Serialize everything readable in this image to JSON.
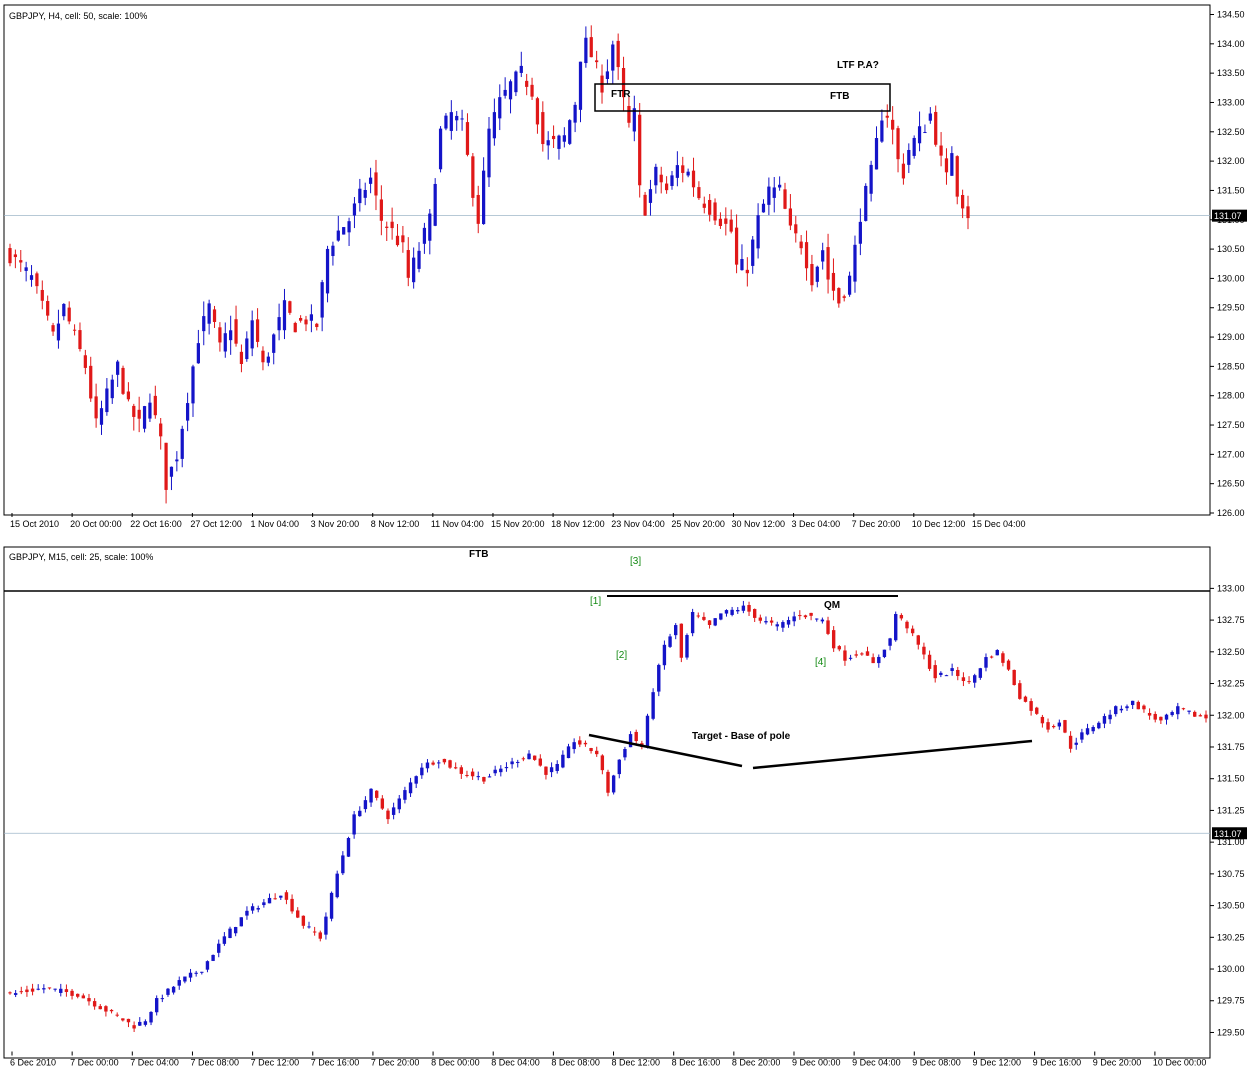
{
  "chart_data": [
    {
      "type": "candlestick",
      "info_text": "GBPJPY, H4, cell: 50, scale: 100%",
      "ylim": [
        126.0,
        134.5
      ],
      "y_ticks": [
        "134.50",
        "134.00",
        "133.50",
        "133.00",
        "132.50",
        "132.00",
        "131.50",
        "131.00",
        "130.50",
        "130.00",
        "129.50",
        "129.00",
        "128.50",
        "128.00",
        "127.50",
        "127.00",
        "126.50",
        "126.00"
      ],
      "x_ticks": [
        "15 Oct 2010",
        "20 Oct 00:00",
        "22 Oct 16:00",
        "27 Oct 12:00",
        "1 Nov 04:00",
        "3 Nov 20:00",
        "8 Nov 12:00",
        "11 Nov 04:00",
        "15 Nov 20:00",
        "18 Nov 12:00",
        "23 Nov 04:00",
        "25 Nov 20:00",
        "30 Nov 12:00",
        "3 Dec 04:00",
        "7 Dec 20:00",
        "10 Dec 12:00",
        "15 Dec 04:00"
      ],
      "last_price": "131.07",
      "close_path": [
        [
          0,
          130.4
        ],
        [
          4,
          130.0
        ],
        [
          8,
          129.0
        ],
        [
          10,
          129.5
        ],
        [
          14,
          128.5
        ],
        [
          16,
          127.5
        ],
        [
          18,
          128.0
        ],
        [
          20,
          128.5
        ],
        [
          22,
          127.8
        ],
        [
          24,
          127.5
        ],
        [
          26,
          128.0
        ],
        [
          28,
          127.2
        ],
        [
          29,
          126.5
        ],
        [
          31,
          127.0
        ],
        [
          33,
          128.0
        ],
        [
          35,
          129.0
        ],
        [
          37,
          129.5
        ],
        [
          39,
          128.8
        ],
        [
          41,
          129.2
        ],
        [
          43,
          128.5
        ],
        [
          45,
          129.3
        ],
        [
          47,
          128.5
        ],
        [
          49,
          129.0
        ],
        [
          51,
          129.5
        ],
        [
          53,
          129.2
        ],
        [
          55,
          129.3
        ],
        [
          57,
          129.2
        ],
        [
          59,
          130.5
        ],
        [
          61,
          130.8
        ],
        [
          63,
          131.0
        ],
        [
          65,
          131.4
        ],
        [
          67,
          131.7
        ],
        [
          69,
          131.0
        ],
        [
          71,
          130.8
        ],
        [
          73,
          130.5
        ],
        [
          74,
          130.0
        ],
        [
          76,
          130.5
        ],
        [
          78,
          131.0
        ],
        [
          80,
          132.5
        ],
        [
          82,
          132.8
        ],
        [
          84,
          132.6
        ],
        [
          86,
          131.5
        ],
        [
          87,
          131.0
        ],
        [
          89,
          132.5
        ],
        [
          91,
          133.0
        ],
        [
          93,
          133.3
        ],
        [
          95,
          133.5
        ],
        [
          97,
          133.2
        ],
        [
          99,
          132.3
        ],
        [
          101,
          132.3
        ],
        [
          103,
          132.4
        ],
        [
          105,
          133.0
        ],
        [
          106,
          133.8
        ],
        [
          107,
          134.0
        ],
        [
          108,
          133.8
        ],
        [
          110,
          133.3
        ],
        [
          111,
          133.6
        ],
        [
          112,
          134.0
        ],
        [
          114,
          133.0
        ],
        [
          115,
          132.6
        ],
        [
          116,
          132.8
        ],
        [
          117,
          131.5
        ],
        [
          118,
          131.2
        ],
        [
          120,
          131.8
        ],
        [
          122,
          131.5
        ],
        [
          124,
          131.9
        ],
        [
          126,
          131.8
        ],
        [
          128,
          131.4
        ],
        [
          130,
          131.2
        ],
        [
          132,
          131.0
        ],
        [
          134,
          130.8
        ],
        [
          135,
          130.2
        ],
        [
          137,
          130.2
        ],
        [
          139,
          131.0
        ],
        [
          141,
          131.5
        ],
        [
          143,
          131.5
        ],
        [
          145,
          130.8
        ],
        [
          147,
          130.6
        ],
        [
          149,
          130.0
        ],
        [
          151,
          130.5
        ],
        [
          152,
          130.0
        ],
        [
          154,
          129.6
        ],
        [
          156,
          130.0
        ],
        [
          157,
          130.5
        ],
        [
          158,
          131.1
        ],
        [
          160,
          131.8
        ],
        [
          161,
          132.3
        ],
        [
          162,
          132.8
        ],
        [
          163,
          132.8
        ],
        [
          164,
          132.5
        ],
        [
          165,
          132.0
        ],
        [
          166,
          131.8
        ],
        [
          167,
          132.2
        ],
        [
          169,
          132.5
        ],
        [
          170,
          132.6
        ],
        [
          171,
          132.8
        ],
        [
          172,
          132.4
        ],
        [
          173,
          132.0
        ],
        [
          174,
          131.7
        ],
        [
          175,
          132.2
        ],
        [
          176,
          131.5
        ],
        [
          177,
          131.3
        ],
        [
          178,
          131.1
        ]
      ],
      "annotations": {
        "box_label_left": "FTR",
        "box_label_right": "FTB",
        "note": "LTF P.A?"
      }
    },
    {
      "type": "candlestick",
      "info_text": "GBPJPY, M15, cell: 25, scale: 100%",
      "ylim": [
        129.35,
        133.2
      ],
      "y_ticks": [
        "133.00",
        "132.75",
        "132.50",
        "132.25",
        "132.00",
        "131.75",
        "131.50",
        "131.25",
        "131.00",
        "130.75",
        "130.50",
        "130.25",
        "130.00",
        "129.75",
        "129.50"
      ],
      "x_ticks": [
        "6 Dec 2010",
        "7 Dec 00:00",
        "7 Dec 04:00",
        "7 Dec 08:00",
        "7 Dec 12:00",
        "7 Dec 16:00",
        "7 Dec 20:00",
        "8 Dec 00:00",
        "8 Dec 04:00",
        "8 Dec 08:00",
        "8 Dec 12:00",
        "8 Dec 16:00",
        "8 Dec 20:00",
        "9 Dec 00:00",
        "9 Dec 04:00",
        "9 Dec 08:00",
        "9 Dec 12:00",
        "9 Dec 16:00",
        "9 Dec 20:00",
        "10 Dec 00:00"
      ],
      "last_price": "131.07",
      "close_path": [
        [
          0,
          129.8
        ],
        [
          6,
          129.85
        ],
        [
          12,
          129.8
        ],
        [
          18,
          129.65
        ],
        [
          22,
          129.55
        ],
        [
          24,
          129.6
        ],
        [
          26,
          129.75
        ],
        [
          30,
          129.9
        ],
        [
          34,
          130.0
        ],
        [
          38,
          130.25
        ],
        [
          42,
          130.45
        ],
        [
          46,
          130.55
        ],
        [
          48,
          130.6
        ],
        [
          52,
          130.35
        ],
        [
          55,
          130.25
        ],
        [
          58,
          130.75
        ],
        [
          61,
          131.2
        ],
        [
          64,
          131.4
        ],
        [
          67,
          131.2
        ],
        [
          70,
          131.4
        ],
        [
          73,
          131.6
        ],
        [
          76,
          131.65
        ],
        [
          80,
          131.55
        ],
        [
          84,
          131.5
        ],
        [
          88,
          131.6
        ],
        [
          92,
          131.7
        ],
        [
          95,
          131.55
        ],
        [
          97,
          131.6
        ],
        [
          100,
          131.8
        ],
        [
          104,
          131.7
        ],
        [
          106,
          131.4
        ],
        [
          108,
          131.65
        ],
        [
          110,
          131.85
        ],
        [
          112,
          131.75
        ],
        [
          114,
          132.2
        ],
        [
          116,
          132.55
        ],
        [
          118,
          132.7
        ],
        [
          119,
          132.45
        ],
        [
          121,
          132.8
        ],
        [
          124,
          132.7
        ],
        [
          126,
          132.8
        ],
        [
          130,
          132.85
        ],
        [
          133,
          132.75
        ],
        [
          136,
          132.7
        ],
        [
          140,
          132.8
        ],
        [
          144,
          132.75
        ],
        [
          146,
          132.55
        ],
        [
          148,
          132.45
        ],
        [
          151,
          132.5
        ],
        [
          153,
          132.4
        ],
        [
          156,
          132.6
        ],
        [
          157,
          132.8
        ],
        [
          159,
          132.7
        ],
        [
          161,
          132.55
        ],
        [
          164,
          132.3
        ],
        [
          167,
          132.35
        ],
        [
          170,
          132.25
        ],
        [
          173,
          132.45
        ],
        [
          175,
          132.5
        ],
        [
          177,
          132.35
        ],
        [
          179,
          132.15
        ],
        [
          182,
          132.0
        ],
        [
          184,
          131.9
        ],
        [
          186,
          131.95
        ],
        [
          188,
          131.75
        ],
        [
          190,
          131.85
        ],
        [
          193,
          131.95
        ],
        [
          196,
          132.05
        ],
        [
          199,
          132.1
        ],
        [
          202,
          132.0
        ],
        [
          204,
          131.95
        ],
        [
          207,
          132.05
        ],
        [
          210,
          132.0
        ],
        [
          212,
          131.98
        ]
      ],
      "annotations": {
        "ftb_label": "FTB",
        "qm_label": "QM",
        "target_label": "Target - Base of pole",
        "markers": [
          "[1]",
          "[2]",
          "[3]",
          "[4]"
        ]
      }
    }
  ]
}
